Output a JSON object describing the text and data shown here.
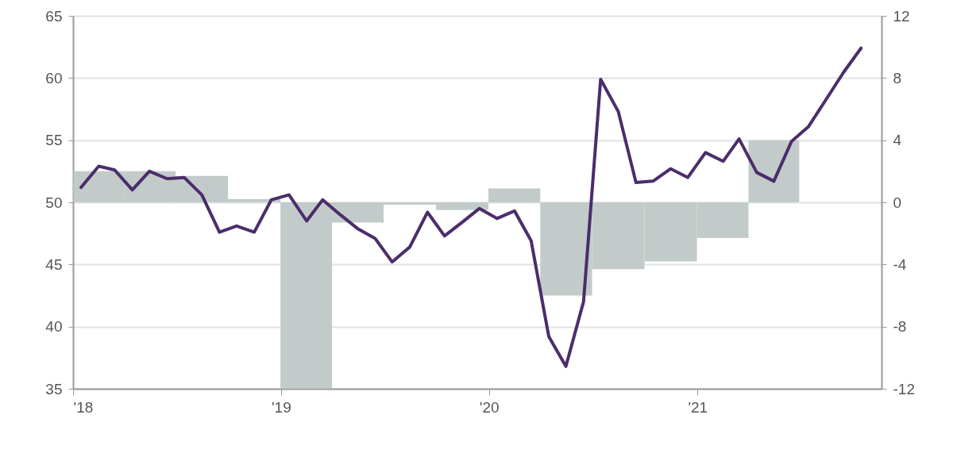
{
  "chart_data": {
    "type": "line",
    "xlim": [
      "2018-01-01",
      "2021-11-20"
    ],
    "xticks": [
      {
        "value": "2018-01-01",
        "label": "'18"
      },
      {
        "value": "2019-01-01",
        "label": "'19"
      },
      {
        "value": "2020-01-01",
        "label": "'20"
      },
      {
        "value": "2021-01-01",
        "label": "'21"
      }
    ],
    "ylim": [
      35,
      65
    ],
    "yticks": [
      35,
      40,
      45,
      50,
      55,
      60,
      65
    ],
    "y2lim": [
      -12,
      12
    ],
    "y2ticks": [
      -12,
      -8,
      -4,
      0,
      4,
      8,
      12
    ],
    "grid": "y",
    "series": [
      {
        "type": "bar",
        "axis": "y2",
        "color": "#c2cbc9",
        "x": [
          "2018-02-15",
          "2018-05-15",
          "2018-08-15",
          "2018-11-15",
          "2019-02-15",
          "2019-05-15",
          "2019-08-15",
          "2019-11-15",
          "2020-02-15",
          "2020-05-15",
          "2020-08-15",
          "2020-11-15",
          "2021-02-15",
          "2021-05-15"
        ],
        "values": [
          2.0,
          2.0,
          1.7,
          0.2,
          -12,
          -1.3,
          -0.15,
          -0.5,
          0.9,
          -6.0,
          -4.3,
          -3.8,
          -2.3,
          4.0
        ]
      },
      {
        "color": "#4b2d6b",
        "x": [
          "2018-01-15",
          "2018-02-15",
          "2018-03-15",
          "2018-04-15",
          "2018-05-15",
          "2018-06-15",
          "2018-07-15",
          "2018-08-15",
          "2018-09-15",
          "2018-10-15",
          "2018-11-15",
          "2018-12-15",
          "2019-01-15",
          "2019-02-15",
          "2019-03-15",
          "2019-04-15",
          "2019-05-15",
          "2019-06-15",
          "2019-07-15",
          "2019-08-15",
          "2019-09-15",
          "2019-10-15",
          "2019-11-15",
          "2019-12-15",
          "2020-01-15",
          "2020-02-15",
          "2020-03-15",
          "2020-04-15",
          "2020-05-15",
          "2020-06-15",
          "2020-07-15",
          "2020-08-15",
          "2020-09-15",
          "2020-10-15",
          "2020-11-15",
          "2020-12-15",
          "2021-01-15",
          "2021-02-15",
          "2021-03-15",
          "2021-04-15",
          "2021-05-15",
          "2021-06-15",
          "2021-07-15",
          "2021-08-15",
          "2021-09-15",
          "2021-10-15"
        ],
        "values": [
          51.2,
          52.9,
          52.6,
          51.0,
          52.5,
          51.9,
          52.0,
          50.6,
          47.6,
          48.1,
          47.6,
          50.2,
          50.6,
          48.5,
          50.2,
          49.0,
          47.9,
          47.1,
          45.2,
          46.4,
          49.2,
          47.3,
          48.4,
          49.5,
          48.7,
          49.3,
          46.9,
          39.2,
          36.8,
          42.0,
          59.9,
          57.3,
          51.6,
          51.7,
          52.7,
          52.0,
          54.0,
          53.3,
          55.1,
          52.4,
          51.7,
          54.9,
          56.1,
          58.3,
          60.5,
          62.4
        ]
      }
    ]
  }
}
